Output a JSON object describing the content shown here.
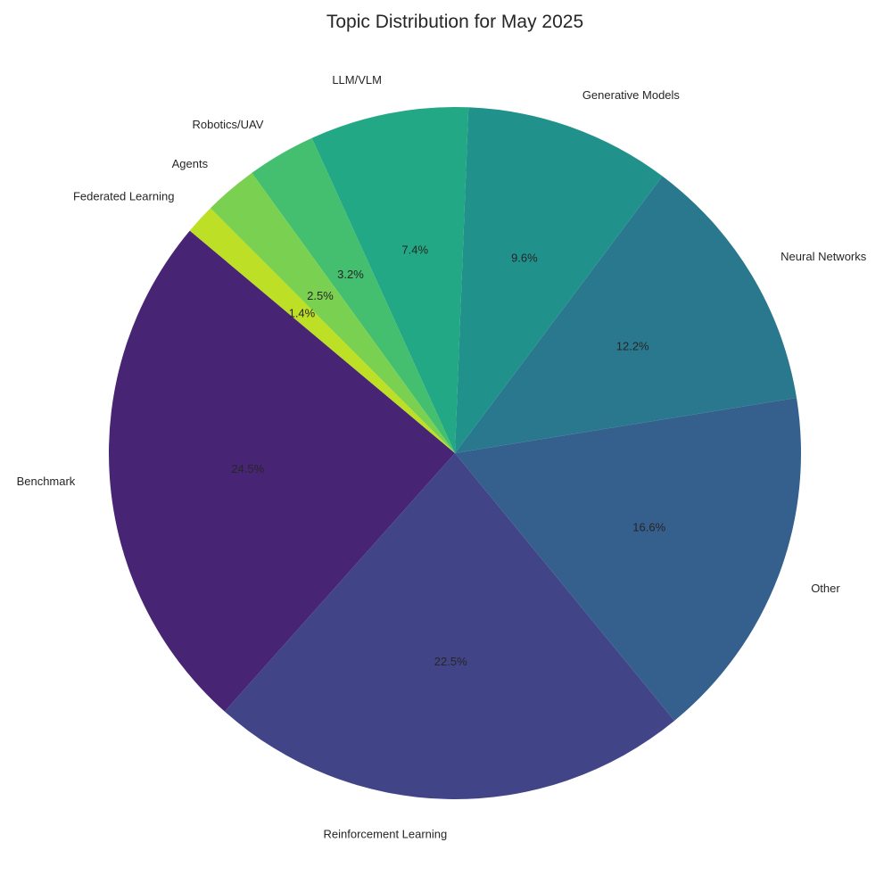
{
  "chart_data": {
    "type": "pie",
    "title": "Topic Distribution for May 2025",
    "start_angle_deg": 140,
    "direction": "counterclockwise",
    "slices": [
      {
        "label": "Benchmark",
        "value": 24.5,
        "pct_text": "24.5%",
        "color": "#482475"
      },
      {
        "label": "Reinforcement Learning",
        "value": 22.5,
        "pct_text": "22.5%",
        "color": "#414487"
      },
      {
        "label": "Other",
        "value": 16.6,
        "pct_text": "16.6%",
        "color": "#355f8d"
      },
      {
        "label": "Neural Networks",
        "value": 12.2,
        "pct_text": "12.2%",
        "color": "#2a788e"
      },
      {
        "label": "Generative Models",
        "value": 9.6,
        "pct_text": "9.6%",
        "color": "#21918c"
      },
      {
        "label": "LLM/VLM",
        "value": 7.4,
        "pct_text": "7.4%",
        "color": "#22a884"
      },
      {
        "label": "Robotics/UAV",
        "value": 3.2,
        "pct_text": "3.2%",
        "color": "#44bf70"
      },
      {
        "label": "Agents",
        "value": 2.5,
        "pct_text": "2.5%",
        "color": "#7ad151"
      },
      {
        "label": "Federated Learning",
        "value": 1.4,
        "pct_text": "1.4%",
        "color": "#bddf26"
      }
    ]
  }
}
